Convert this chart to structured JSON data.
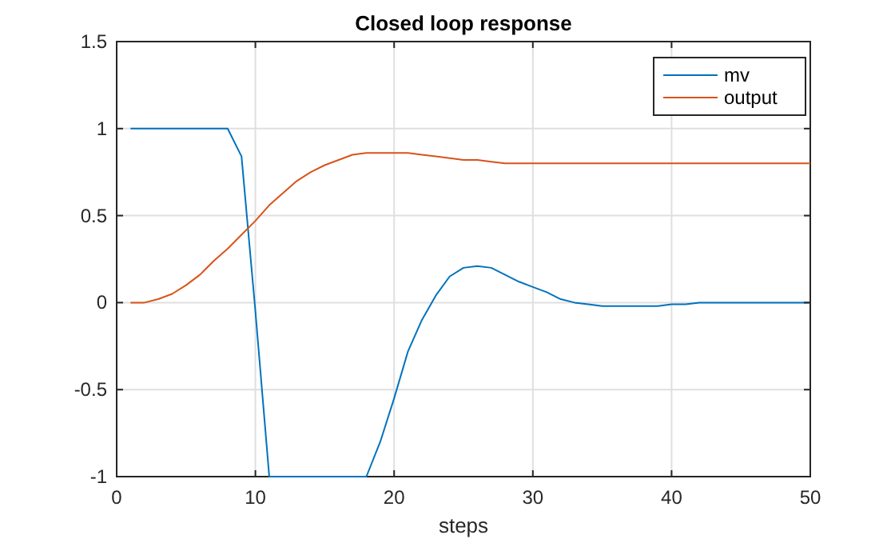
{
  "chart_data": {
    "type": "line",
    "title": "Closed loop response",
    "xlabel": "steps",
    "x": [
      1,
      2,
      3,
      4,
      5,
      6,
      7,
      8,
      9,
      10,
      11,
      12,
      13,
      14,
      15,
      16,
      17,
      18,
      19,
      20,
      21,
      22,
      23,
      24,
      25,
      26,
      27,
      28,
      29,
      30,
      31,
      32,
      33,
      34,
      35,
      36,
      37,
      38,
      39,
      40,
      41,
      42,
      43,
      44,
      45,
      46,
      47,
      48,
      49,
      50
    ],
    "series": [
      {
        "name": "mv",
        "color": "#0072bd",
        "values": [
          1,
          1,
          1,
          1,
          1,
          1,
          1,
          1,
          0.84,
          -0.05,
          -1,
          -1,
          -1,
          -1,
          -1,
          -1,
          -1,
          -1,
          -0.8,
          -0.55,
          -0.28,
          -0.1,
          0.04,
          0.15,
          0.2,
          0.21,
          0.2,
          0.16,
          0.12,
          0.09,
          0.06,
          0.02,
          0,
          -0.01,
          -0.02,
          -0.02,
          -0.02,
          -0.02,
          -0.02,
          -0.01,
          -0.01,
          0,
          0,
          0,
          0,
          0,
          0,
          0,
          0,
          0
        ]
      },
      {
        "name": "output",
        "color": "#d95319",
        "values": [
          0,
          0,
          0.02,
          0.05,
          0.1,
          0.16,
          0.24,
          0.31,
          0.39,
          0.47,
          0.56,
          0.63,
          0.7,
          0.75,
          0.79,
          0.82,
          0.85,
          0.86,
          0.86,
          0.86,
          0.86,
          0.85,
          0.84,
          0.83,
          0.82,
          0.82,
          0.81,
          0.8,
          0.8,
          0.8,
          0.8,
          0.8,
          0.8,
          0.8,
          0.8,
          0.8,
          0.8,
          0.8,
          0.8,
          0.8,
          0.8,
          0.8,
          0.8,
          0.8,
          0.8,
          0.8,
          0.8,
          0.8,
          0.8,
          0.8
        ]
      }
    ],
    "xlim": [
      0,
      50
    ],
    "xticks": [
      0,
      10,
      20,
      30,
      40,
      50
    ],
    "ylim": [
      -1,
      1.5
    ],
    "yticks": [
      -1,
      -0.5,
      0,
      0.5,
      1,
      1.5
    ],
    "grid": true,
    "legend": "top right",
    "marker": "none",
    "line_style": "solid"
  }
}
